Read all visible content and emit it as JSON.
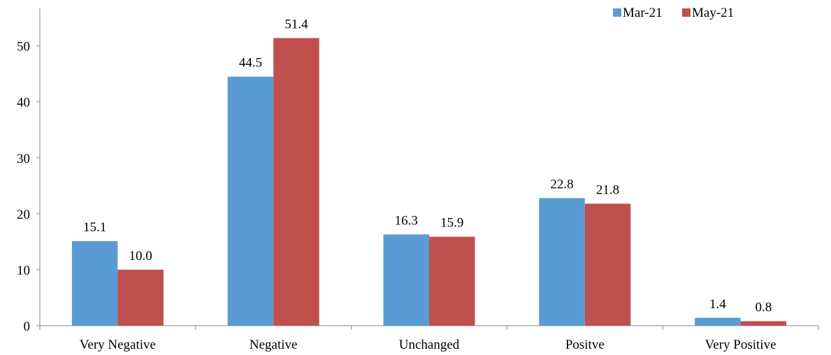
{
  "chart_data": {
    "type": "bar",
    "categories": [
      "Very Negative",
      "Negative",
      "Unchanged",
      "Positve",
      "Very Positive"
    ],
    "series": [
      {
        "name": "Mar-21",
        "values": [
          15.1,
          44.5,
          16.3,
          22.8,
          1.4
        ],
        "labels": [
          "15.1",
          "44.5",
          "16.3",
          "22.8",
          "1.4"
        ],
        "color": "#5B9BD5"
      },
      {
        "name": "May-21",
        "values": [
          10.0,
          51.4,
          15.9,
          21.8,
          0.8
        ],
        "labels": [
          "10.0",
          "51.4",
          "15.9",
          "21.8",
          "0.8"
        ],
        "color": "#C0504D"
      }
    ],
    "yticks": [
      "0",
      "10",
      "20",
      "30",
      "40",
      "50"
    ],
    "ylim": [
      0,
      56.7
    ],
    "grid": false,
    "legend": "top-right"
  }
}
